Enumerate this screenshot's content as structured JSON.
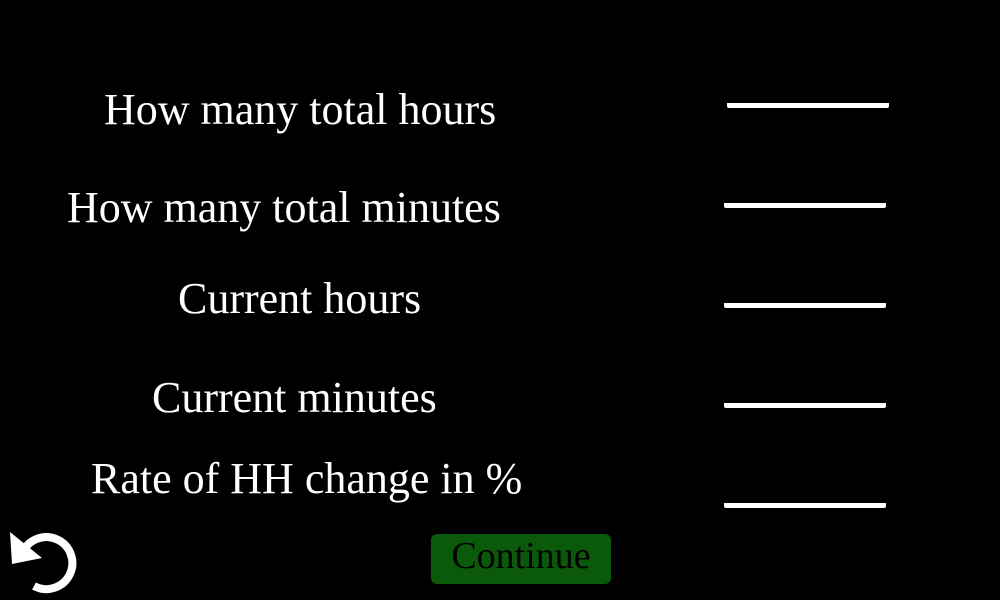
{
  "form": {
    "fields": [
      {
        "label": "How many total hours",
        "value": ""
      },
      {
        "label": "How many total minutes",
        "value": ""
      },
      {
        "label": "Current hours",
        "value": ""
      },
      {
        "label": "Current minutes",
        "value": ""
      },
      {
        "label": "Rate of HH change in %",
        "value": ""
      }
    ]
  },
  "actions": {
    "back_icon": "undo-arrow-icon",
    "continue_label": "Continue"
  },
  "colors": {
    "background": "#000000",
    "text": "#ffffff",
    "continue_button": "#0b5a0b",
    "continue_text": "#000000"
  }
}
